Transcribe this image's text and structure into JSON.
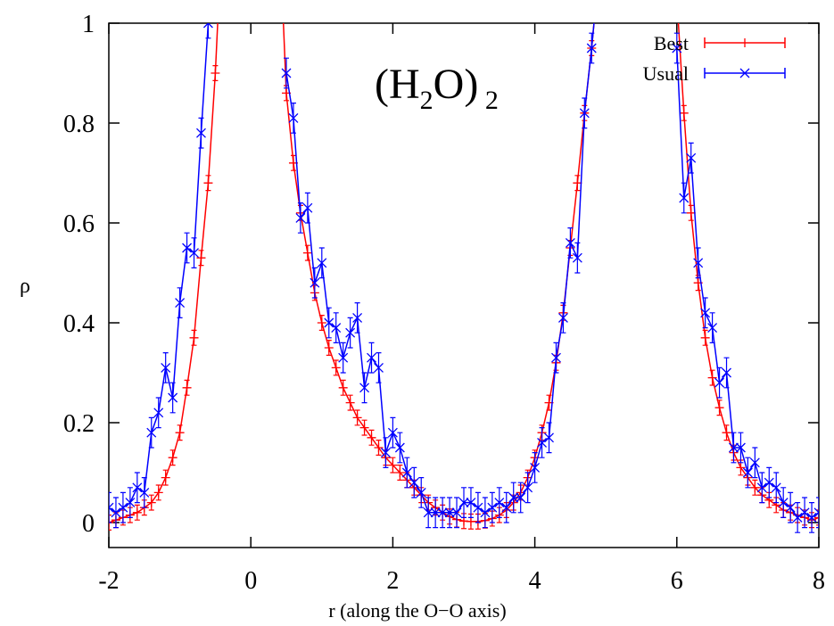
{
  "chart_data": {
    "type": "line",
    "xlabel": "r (along the O−O axis)",
    "ylabel": "ρ",
    "annotation_parts": [
      {
        "text": "(H"
      },
      {
        "text": "2",
        "sub": true
      },
      {
        "text": "O)"
      },
      {
        "text": " 2",
        "sub": true
      }
    ],
    "xlim": [
      -2,
      8
    ],
    "ylim": [
      -0.05,
      1
    ],
    "xticks": [
      -2,
      0,
      2,
      4,
      6,
      8
    ],
    "yticks": [
      0,
      0.2,
      0.4,
      0.6,
      0.8,
      1
    ],
    "legend": "top-right",
    "x": [
      -2,
      -1.9,
      -1.8,
      -1.7,
      -1.6,
      -1.5,
      -1.4,
      -1.3,
      -1.2,
      -1.1,
      -1,
      -0.9,
      -0.8,
      -0.7,
      -0.6,
      -0.5,
      -0.4,
      -0.3,
      -0.2,
      -0.1,
      0,
      0.1,
      0.2,
      0.3,
      0.4,
      0.5,
      0.6,
      0.7,
      0.8,
      0.9,
      1,
      1.1,
      1.2,
      1.3,
      1.4,
      1.5,
      1.6,
      1.7,
      1.8,
      1.9,
      2,
      2.1,
      2.2,
      2.3,
      2.4,
      2.5,
      2.6,
      2.7,
      2.8,
      2.9,
      3,
      3.1,
      3.2,
      3.3,
      3.4,
      3.5,
      3.6,
      3.7,
      3.8,
      3.9,
      4,
      4.1,
      4.2,
      4.3,
      4.4,
      4.5,
      4.6,
      4.7,
      4.8,
      4.9,
      5,
      5.1,
      5.2,
      5.3,
      5.4,
      5.5,
      5.6,
      5.7,
      5.8,
      5.9,
      6,
      6.1,
      6.2,
      6.3,
      6.4,
      6.5,
      6.6,
      6.7,
      6.8,
      6.9,
      7,
      7.1,
      7.2,
      7.3,
      7.4,
      7.5,
      7.6,
      7.7,
      7.8,
      7.9,
      8
    ],
    "series": [
      {
        "name": "Best",
        "color": "#ff0000",
        "marker": "plus",
        "error": 0.015,
        "values": [
          0,
          0.005,
          0.01,
          0.015,
          0.02,
          0.03,
          0.04,
          0.06,
          0.09,
          0.13,
          0.18,
          0.27,
          0.37,
          0.53,
          0.68,
          0.9,
          1.2,
          null,
          null,
          null,
          null,
          null,
          null,
          null,
          1.2,
          0.86,
          0.72,
          0.62,
          0.54,
          0.46,
          0.4,
          0.35,
          0.31,
          0.27,
          0.24,
          0.21,
          0.19,
          0.17,
          0.15,
          0.13,
          0.115,
          0.1,
          0.085,
          0.07,
          0.055,
          0.04,
          0.03,
          0.02,
          0.012,
          0.006,
          0.003,
          0.002,
          0.002,
          0.004,
          0.008,
          0.015,
          0.025,
          0.04,
          0.06,
          0.09,
          0.13,
          0.18,
          0.24,
          0.32,
          0.42,
          0.55,
          0.68,
          0.82,
          0.95,
          1.1,
          null,
          null,
          null,
          null,
          null,
          null,
          null,
          null,
          null,
          null,
          1.05,
          0.82,
          0.62,
          0.48,
          0.37,
          0.29,
          0.23,
          0.18,
          0.14,
          0.11,
          0.09,
          0.07,
          0.055,
          0.045,
          0.035,
          0.025,
          0.02,
          0.015,
          0.01,
          0.005,
          0.01
        ]
      },
      {
        "name": "Usual",
        "color": "#0000ff",
        "marker": "cross",
        "error": 0.03,
        "values": [
          0.03,
          0.02,
          0.03,
          0.04,
          0.07,
          0.06,
          0.18,
          0.22,
          0.31,
          0.25,
          0.44,
          0.55,
          0.54,
          0.78,
          1,
          null,
          null,
          null,
          null,
          null,
          null,
          null,
          null,
          null,
          null,
          0.9,
          0.81,
          0.61,
          0.63,
          0.48,
          0.52,
          0.4,
          0.39,
          0.33,
          0.38,
          0.41,
          0.27,
          0.33,
          0.31,
          0.14,
          0.18,
          0.15,
          0.1,
          0.08,
          0.06,
          0.02,
          0.02,
          0.02,
          0.02,
          0.02,
          0.04,
          0.04,
          0.03,
          0.02,
          0.03,
          0.04,
          0.03,
          0.05,
          0.05,
          0.07,
          0.11,
          0.16,
          0.17,
          0.33,
          0.41,
          0.56,
          0.53,
          0.82,
          0.95,
          1.1,
          null,
          null,
          null,
          null,
          null,
          null,
          null,
          null,
          null,
          null,
          0.95,
          0.65,
          0.73,
          0.52,
          0.42,
          0.39,
          0.28,
          0.3,
          0.15,
          0.15,
          0.1,
          0.12,
          0.07,
          0.08,
          0.07,
          0.04,
          0.03,
          0.01,
          0.02,
          0.01,
          0.02
        ]
      }
    ]
  }
}
